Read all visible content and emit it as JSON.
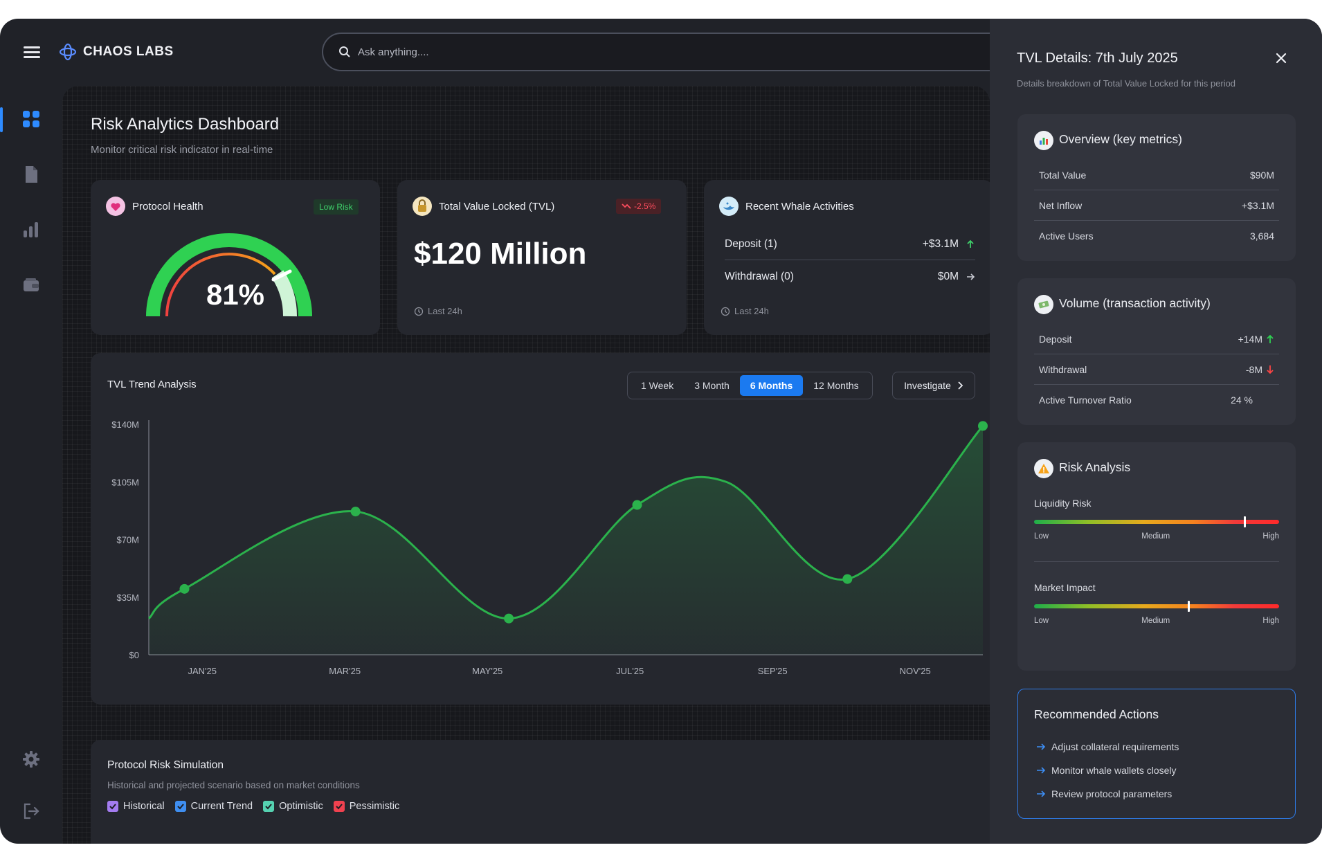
{
  "app": {
    "brand": "CHAOS LABS"
  },
  "search": {
    "placeholder": "Ask anything...."
  },
  "nav": [
    "dashboard",
    "documents",
    "analytics",
    "wallet",
    "settings",
    "logout"
  ],
  "page": {
    "title": "Risk Analytics Dashboard",
    "subtitle": "Monitor critical risk indicator in real-time"
  },
  "protocol_health": {
    "title": "Protocol Health",
    "badge": "Low Risk",
    "value_label": "81%",
    "value": 81
  },
  "tvl": {
    "title": "Total Value Locked (TVL)",
    "change": "-2.5%",
    "value": "$120 Million",
    "footer": "Last 24h"
  },
  "whale": {
    "title": "Recent Whale Activities",
    "rows": [
      {
        "label": "Deposit (1)",
        "value": "+$3.1M",
        "direction": "up"
      },
      {
        "label": "Withdrawal (0)",
        "value": "$0M",
        "direction": "flat"
      }
    ],
    "footer": "Last 24h"
  },
  "trend": {
    "title": "TVL Trend Analysis",
    "tabs": [
      "1 Week",
      "3 Month",
      "6 Months",
      "12 Months"
    ],
    "active_tab": "6 Months",
    "investigate": "Investigate"
  },
  "chart_data": {
    "type": "area",
    "title": "TVL Trend Analysis",
    "x_ticks": [
      "JAN'25",
      "MAR'25",
      "MAY'25",
      "JUL'25",
      "SEP'25",
      "NOV'25"
    ],
    "y_ticks": [
      "$0",
      "$35M",
      "$70M",
      "$105M",
      "$140M"
    ],
    "ylim": [
      0,
      140
    ],
    "y_unit": "$M",
    "x_range": [
      0,
      11.7
    ],
    "series": [
      {
        "color": "#2bb24c",
        "x": [
          0,
          0.5,
          2.9,
          5.05,
          6.85,
          8.1,
          9.8,
          11.7
        ],
        "y": [
          22,
          40,
          87,
          22,
          91,
          105,
          46,
          139
        ],
        "markers": [
          0.5,
          2.9,
          5.05,
          6.85,
          9.8,
          11.7
        ]
      }
    ],
    "grid": false
  },
  "simulation": {
    "title": "Protocol Risk Simulation",
    "subtitle": "Historical and projected scenario based on market conditions",
    "legend": [
      {
        "label": "Historical",
        "color": "#a47cf0"
      },
      {
        "label": "Current Trend",
        "color": "#3f8ef0"
      },
      {
        "label": "Optimistic",
        "color": "#55d1b0"
      },
      {
        "label": "Pessimistic",
        "color": "#f0414f"
      }
    ]
  },
  "panel": {
    "title": "TVL Details: 7th July 2025",
    "subtitle": "Details breakdown of Total Value Locked for this period",
    "overview": {
      "title": "Overview (key metrics)",
      "rows": [
        {
          "label": "Total Value",
          "value": "$90M"
        },
        {
          "label": "Net Inflow",
          "value": "+$3.1M"
        },
        {
          "label": "Active Users",
          "value": "3,684"
        }
      ]
    },
    "volume": {
      "title": "Volume (transaction activity)",
      "rows": [
        {
          "label": "Deposit",
          "value": "+14M",
          "direction": "up"
        },
        {
          "label": "Withdrawal",
          "value": "-8M",
          "direction": "down"
        },
        {
          "label": "Active Turnover Ratio",
          "value": "24 %"
        }
      ]
    },
    "risk": {
      "title": "Risk Analysis",
      "items": [
        {
          "label": "Liquidity Risk",
          "level": 0.86
        },
        {
          "label": "Market Impact",
          "level": 0.63
        }
      ],
      "scale": [
        "Low",
        "Medium",
        "High"
      ]
    },
    "recommended": {
      "title": "Recommended Actions",
      "items": [
        "Adjust collateral requirements",
        "Monitor whale wallets closely",
        "Review protocol parameters"
      ]
    }
  }
}
